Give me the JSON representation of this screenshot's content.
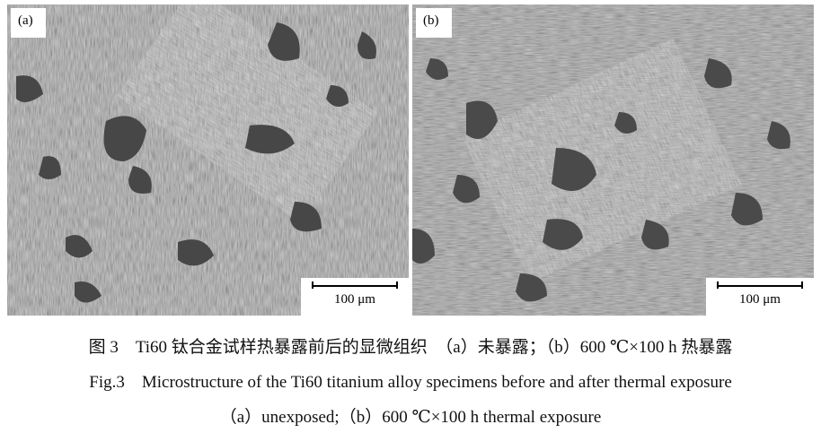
{
  "figure": {
    "panels": [
      {
        "label": "(a)",
        "scale_bar": "100 μm"
      },
      {
        "label": "(b)",
        "scale_bar": "100 μm"
      }
    ],
    "caption_cn": "图 3　Ti60 钛合金试样热暴露前后的显微组织　（a）未暴露；（b）600 ℃×100 h 热暴露",
    "caption_en": "Fig.3　Microstructure of the Ti60 titanium alloy specimens before and after thermal exposure",
    "caption_en_sub": "（a）unexposed;（b）600 ℃×100 h thermal exposure"
  }
}
